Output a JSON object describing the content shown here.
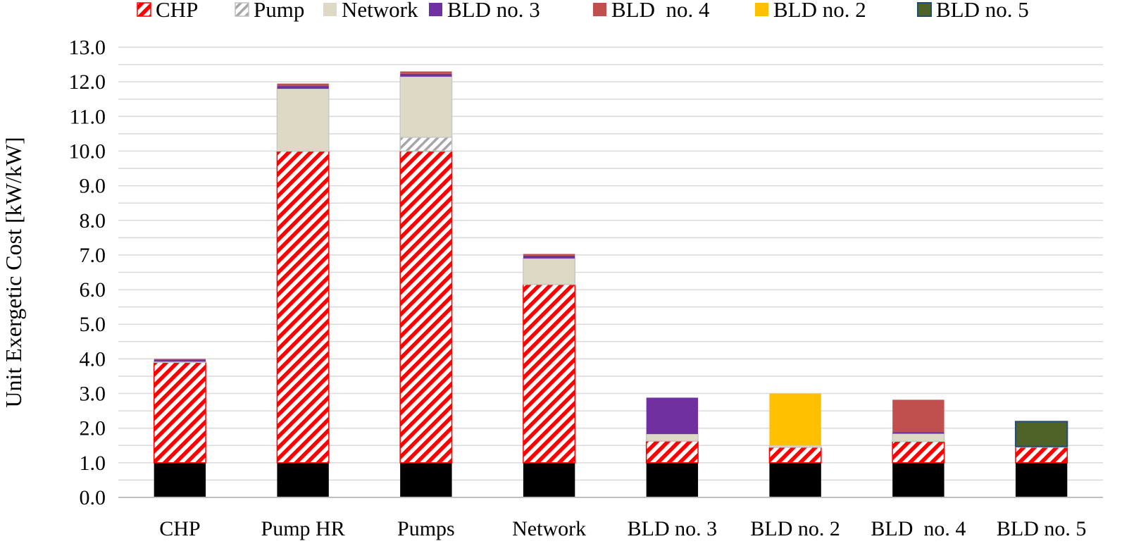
{
  "chart_data": {
    "type": "bar",
    "stacked": true,
    "title": "",
    "xlabel": "",
    "ylabel": "Unit Exergetic Cost [kW/kW]",
    "ylim": [
      0,
      13
    ],
    "ytick_step": 0.5,
    "ytick_label_step": 1.0,
    "ytick_format_decimals": 1,
    "grid": true,
    "legend_position": "top",
    "categories": [
      "CHP",
      "Pump HR",
      "Pumps",
      "Network",
      "BLD no. 3",
      "BLD no. 2",
      "BLD  no. 4",
      "BLD no. 5"
    ],
    "series": [
      {
        "name": "",
        "legend": false,
        "color": "#000000",
        "pattern": "solid",
        "values": [
          1.0,
          1.0,
          1.0,
          1.0,
          1.0,
          1.0,
          1.0,
          1.0
        ]
      },
      {
        "name": "CHP",
        "legend": true,
        "color": "#ff0000",
        "pattern": "hatch-red",
        "values": [
          2.9,
          9.0,
          9.0,
          5.15,
          0.63,
          0.45,
          0.62,
          0.45
        ]
      },
      {
        "name": "Pump",
        "legend": true,
        "color": "#bfbfbf",
        "pattern": "hatch-gray",
        "values": [
          0,
          0,
          0.4,
          0,
          0,
          0,
          0,
          0
        ]
      },
      {
        "name": "Network",
        "legend": true,
        "color": "#ddd9c4",
        "pattern": "solid",
        "values": [
          0.02,
          1.8,
          1.75,
          0.75,
          0.2,
          0.05,
          0.22,
          0.02
        ]
      },
      {
        "name": "BLD no. 3",
        "legend": true,
        "color": "#7030a0",
        "pattern": "solid",
        "values": [
          0.06,
          0.08,
          0.08,
          0.08,
          1.05,
          0,
          0.05,
          0
        ]
      },
      {
        "name": "BLD  no. 4",
        "legend": true,
        "color": "#c0504d",
        "pattern": "solid",
        "values": [
          0.02,
          0.07,
          0.07,
          0.05,
          0,
          0,
          0.93,
          0
        ]
      },
      {
        "name": "BLD no. 2",
        "legend": true,
        "color": "#ffc000",
        "pattern": "solid",
        "values": [
          0,
          0,
          0,
          0,
          0,
          1.5,
          0,
          0
        ]
      },
      {
        "name": "BLD no. 5",
        "legend": true,
        "color": "#4f6228",
        "pattern": "solid",
        "border": "#1f4e79",
        "values": [
          0,
          0,
          0,
          0,
          0,
          0,
          0,
          0.72
        ]
      }
    ]
  }
}
